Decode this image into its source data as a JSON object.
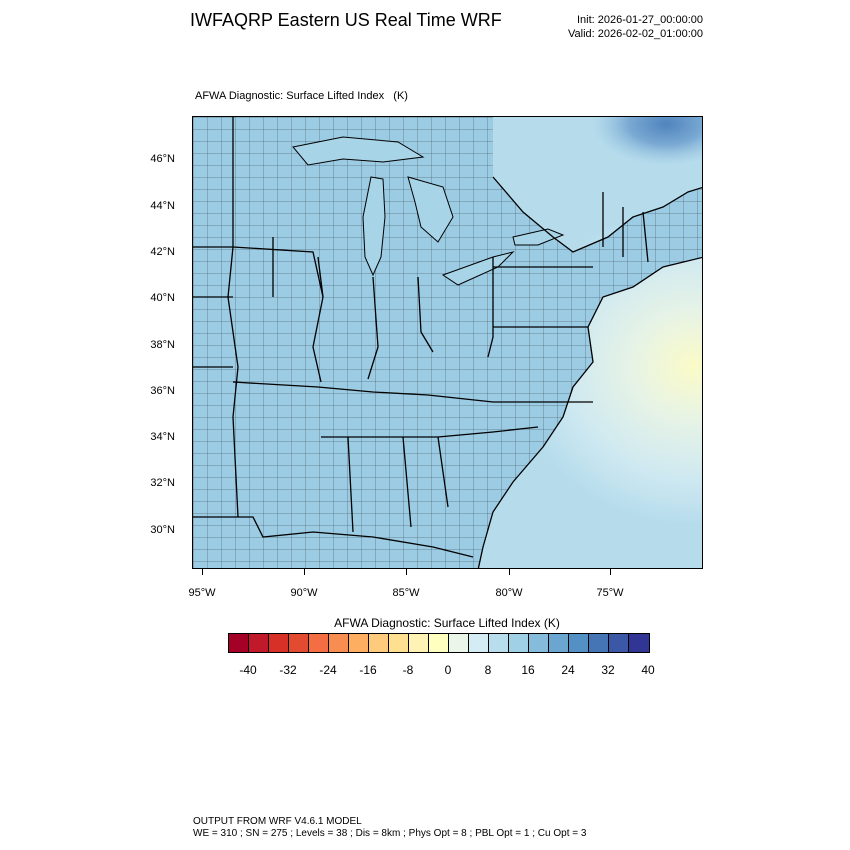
{
  "header": {
    "title": "IWFAQRP Eastern US Real Time WRF",
    "init": "Init: 2026-01-27_00:00:00",
    "valid": "Valid: 2026-02-02_01:00:00"
  },
  "map": {
    "subtitle": "AFWA Diagnostic: Surface Lifted Index   (K)",
    "lat_labels": [
      "46°N",
      "44°N",
      "42°N",
      "40°N",
      "38°N",
      "36°N",
      "34°N",
      "32°N",
      "30°N"
    ],
    "lon_labels": [
      "95°W",
      "90°W",
      "85°W",
      "80°W",
      "75°W"
    ]
  },
  "colorbar": {
    "title": "AFWA Diagnostic: Surface Lifted Index  (K)",
    "labels": [
      "-40",
      "-32",
      "-24",
      "-16",
      "-8",
      "0",
      "8",
      "16",
      "24",
      "32",
      "40"
    ],
    "colors": [
      "#a50026",
      "#c0192a",
      "#d73027",
      "#e34b31",
      "#f46d43",
      "#f88d52",
      "#fdae61",
      "#fdcb7b",
      "#fee090",
      "#fef3b4",
      "#ffffbf",
      "#eaf6e8",
      "#d4ecf4",
      "#b8ddec",
      "#9fd0e6",
      "#85bcdb",
      "#6aa6cf",
      "#5390c3",
      "#4575b4",
      "#3b58a6",
      "#313695"
    ]
  },
  "footer": {
    "line1": "OUTPUT FROM WRF V4.6.1 MODEL",
    "line2": "WE = 310 ; SN = 275 ; Levels = 38 ; Dis = 8km ; Phys Opt = 8 ; PBL Opt = 1 ; Cu Opt = 3"
  }
}
